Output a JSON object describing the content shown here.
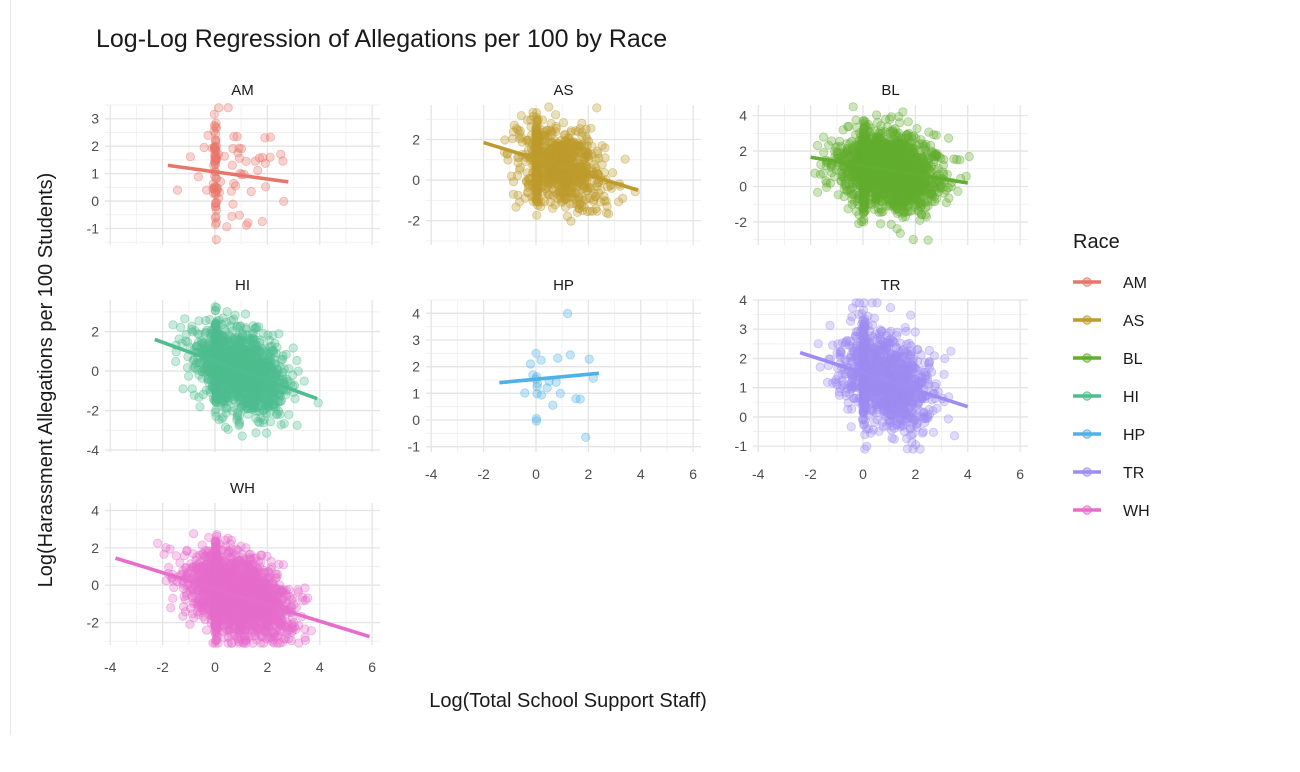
{
  "chart_data": {
    "type": "scatter",
    "title": "Log-Log Regression of Allegations per 100 by Race",
    "xlabel": "Log(Total School Support Staff)",
    "ylabel": "Log(Harassment Allegations per 100 Students)",
    "xlim": [
      -4.2,
      6.3
    ],
    "x_ticks": [
      -4,
      -2,
      0,
      2,
      4,
      6
    ],
    "grid": true,
    "legend": {
      "title": "Race",
      "position": "right"
    },
    "colors": {
      "AM": "#E8756A",
      "AS": "#BE9B2D",
      "BL": "#62AE2E",
      "HI": "#4FBD8F",
      "HP": "#4DB2E5",
      "TR": "#9E8CF2",
      "WH": "#E66DCC"
    },
    "panels": [
      {
        "name": "AM",
        "ylim": [
          -1.6,
          3.5
        ],
        "y_ticks": [
          -1,
          0,
          1,
          2,
          3
        ],
        "fit": {
          "x": [
            -1.8,
            2.8
          ],
          "y": [
            1.3,
            0.7
          ]
        },
        "cloud": {
          "n": 110,
          "x_range": [
            -2.0,
            3.0
          ],
          "x_center": 0.9,
          "x_sd": 1.0,
          "y_sd": 1.05,
          "concentrate_at_zero": true
        }
      },
      {
        "name": "AS",
        "ylim": [
          -3.2,
          3.7
        ],
        "y_ticks": [
          -2,
          0,
          2
        ],
        "fit": {
          "x": [
            -2.0,
            3.9
          ],
          "y": [
            1.85,
            -0.5
          ]
        },
        "cloud": {
          "n": 900,
          "x_range": [
            -2.8,
            3.9
          ],
          "x_center": 1.0,
          "x_sd": 0.8,
          "y_sd": 1.0
        }
      },
      {
        "name": "BL",
        "ylim": [
          -3.3,
          4.6
        ],
        "y_ticks": [
          -2,
          0,
          2,
          4
        ],
        "fit": {
          "x": [
            -2.0,
            4.0
          ],
          "y": [
            1.65,
            0.2
          ]
        },
        "cloud": {
          "n": 2200,
          "x_range": [
            -2.1,
            4.1
          ],
          "x_center": 1.0,
          "x_sd": 0.9,
          "y_sd": 1.05
        }
      },
      {
        "name": "HI",
        "ylim": [
          -4.1,
          3.6
        ],
        "y_ticks": [
          -4,
          -2,
          0,
          2
        ],
        "fit": {
          "x": [
            -2.3,
            3.9
          ],
          "y": [
            1.6,
            -1.4
          ]
        },
        "cloud": {
          "n": 1600,
          "x_range": [
            -2.4,
            4.0
          ],
          "x_center": 1.0,
          "x_sd": 0.85,
          "y_sd": 1.0
        }
      },
      {
        "name": "HP",
        "ylim": [
          -1.2,
          4.5
        ],
        "y_ticks": [
          -1,
          0,
          1,
          2,
          3,
          4
        ],
        "fit": {
          "x": [
            -1.4,
            2.4
          ],
          "y": [
            1.4,
            1.75
          ]
        },
        "cloud": {
          "n": 26,
          "x_range": [
            -1.5,
            2.5
          ],
          "x_center": 0.8,
          "x_sd": 0.9,
          "y_sd": 1.0
        }
      },
      {
        "name": "TR",
        "ylim": [
          -1.2,
          4.0
        ],
        "y_ticks": [
          -1,
          0,
          1,
          2,
          3,
          4
        ],
        "fit": {
          "x": [
            -2.4,
            4.0
          ],
          "y": [
            2.2,
            0.35
          ]
        },
        "cloud": {
          "n": 1200,
          "x_range": [
            -2.5,
            4.1
          ],
          "x_center": 0.9,
          "x_sd": 0.85,
          "y_sd": 0.8
        }
      },
      {
        "name": "WH",
        "ylim": [
          -3.2,
          4.4
        ],
        "y_ticks": [
          -2,
          0,
          2,
          4
        ],
        "fit": {
          "x": [
            -3.8,
            5.9
          ],
          "y": [
            1.45,
            -2.75
          ]
        },
        "cloud": {
          "n": 2400,
          "x_range": [
            -3.9,
            6.0
          ],
          "x_center": 0.9,
          "x_sd": 0.9,
          "y_sd": 1.0
        }
      }
    ]
  }
}
